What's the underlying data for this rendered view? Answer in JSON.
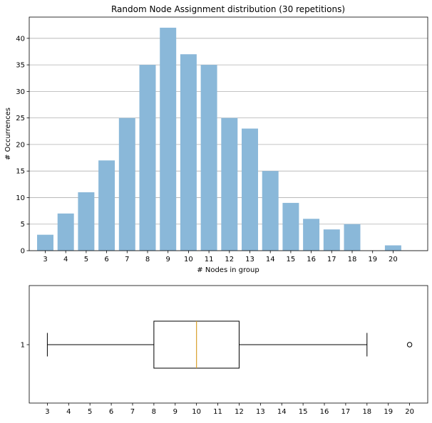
{
  "chart_data": [
    {
      "type": "bar",
      "title": "Random Node Assignment distribution (30 repetitions)",
      "xlabel": "# Nodes in group",
      "ylabel": "# Occurrences",
      "categories": [
        3,
        4,
        5,
        6,
        7,
        8,
        9,
        10,
        11,
        12,
        13,
        14,
        15,
        16,
        17,
        18,
        19,
        20
      ],
      "values": [
        3,
        7,
        11,
        17,
        25,
        35,
        42,
        37,
        35,
        25,
        23,
        15,
        9,
        6,
        4,
        5,
        0,
        1
      ],
      "ylim": [
        0,
        44
      ],
      "yticks": [
        0,
        5,
        10,
        15,
        20,
        25,
        30,
        35,
        40
      ],
      "grid": "y",
      "bar_color": "#8ab8d9"
    },
    {
      "type": "boxplot",
      "orientation": "horizontal",
      "ytick_label": "1",
      "whisker_low": 3,
      "q1": 8,
      "median": 10,
      "q3": 12,
      "whisker_high": 18,
      "outliers": [
        20
      ],
      "xlim": [
        2.15,
        20.85
      ],
      "xticks": [
        3,
        4,
        5,
        6,
        7,
        8,
        9,
        10,
        11,
        12,
        13,
        14,
        15,
        16,
        17,
        18,
        19,
        20
      ],
      "median_color": "#d9a02b"
    }
  ]
}
